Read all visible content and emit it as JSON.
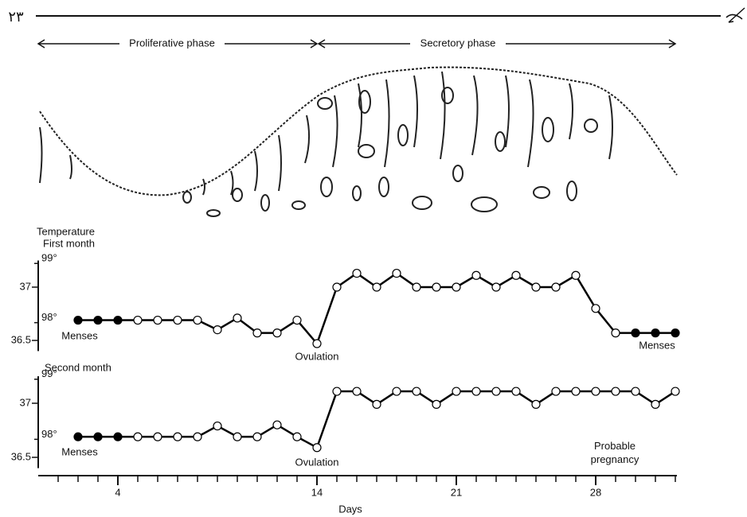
{
  "page_number": "٢٣",
  "phases": [
    "Proliferative phase",
    "Secretory phase"
  ],
  "chart_data": [
    {
      "type": "line",
      "title": "Temperature",
      "subtitle": "First month",
      "x": [
        2,
        3,
        4,
        5,
        6,
        7,
        8,
        9,
        10,
        11,
        12,
        13,
        14,
        15,
        16,
        17,
        18,
        19,
        20,
        21,
        22,
        23,
        24,
        25,
        26,
        27,
        28,
        29,
        30,
        31,
        32
      ],
      "values": [
        36.69,
        36.69,
        36.69,
        36.69,
        36.69,
        36.69,
        36.69,
        36.6,
        36.71,
        36.57,
        36.57,
        36.69,
        36.47,
        37.0,
        37.13,
        37.0,
        37.13,
        37.0,
        37.0,
        37.0,
        37.11,
        37.0,
        37.11,
        37.0,
        37.0,
        37.11,
        36.8,
        36.57,
        36.57,
        36.57,
        36.57
      ],
      "filled_points": [
        0,
        1,
        2,
        28,
        29,
        30
      ],
      "color": "#000000",
      "xlim": [
        0,
        32
      ],
      "ylim": [
        36.4,
        37.25
      ],
      "yticks": [
        36.5,
        37
      ],
      "y2lim": [
        97.52,
        99.05
      ],
      "y2ticks": [
        {
          "value": 98,
          "label": "98°"
        },
        {
          "value": 99,
          "label": "99°"
        }
      ],
      "annotations": [
        "Menses",
        "Ovulation",
        "Menses"
      ]
    },
    {
      "type": "line",
      "title": "Second month",
      "x": [
        2,
        3,
        4,
        5,
        6,
        7,
        8,
        9,
        10,
        11,
        12,
        13,
        14,
        15,
        16,
        17,
        18,
        19,
        20,
        21,
        22,
        23,
        24,
        25,
        26,
        27,
        28,
        29,
        30,
        31,
        32
      ],
      "values": [
        36.69,
        36.69,
        36.69,
        36.69,
        36.69,
        36.69,
        36.69,
        36.79,
        36.69,
        36.69,
        36.8,
        36.69,
        36.59,
        37.11,
        37.11,
        36.99,
        37.11,
        37.11,
        36.99,
        37.11,
        37.11,
        37.11,
        37.11,
        36.99,
        37.11,
        37.11,
        37.11,
        37.11,
        37.11,
        36.99,
        37.11
      ],
      "filled_points": [
        0,
        1,
        2
      ],
      "color": "#000000",
      "xlim": [
        0,
        32
      ],
      "ylim": [
        36.4,
        37.25
      ],
      "yticks": [
        36.5,
        37
      ],
      "y2lim": [
        97.52,
        99.05
      ],
      "y2ticks": [
        {
          "value": 98,
          "label": "98°"
        },
        {
          "value": 99,
          "label": "99°"
        }
      ],
      "xticks": [
        4,
        14,
        21,
        28
      ],
      "minor_xticks": [
        1,
        2,
        3,
        4,
        5,
        6,
        7,
        8,
        9,
        10,
        11,
        12,
        13,
        14,
        15,
        16,
        17,
        18,
        19,
        20,
        21,
        22,
        23,
        24,
        25,
        26,
        27,
        28,
        29,
        30,
        31,
        32
      ],
      "x_label": "Days",
      "annotations": [
        "Menses",
        "Ovulation",
        "Probable pregnancy"
      ]
    }
  ]
}
